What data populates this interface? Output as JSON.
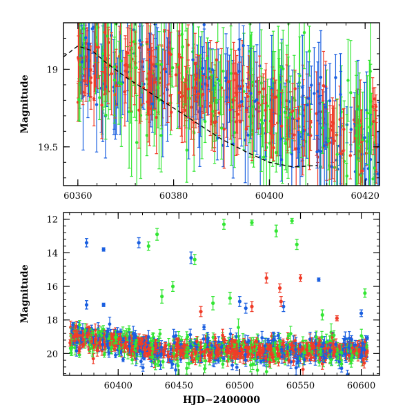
{
  "chart_data": [
    {
      "type": "scatter",
      "title": "",
      "xlabel": "",
      "ylabel": "Magnitude",
      "xlim": [
        60357,
        60423
      ],
      "ylim": [
        19.75,
        18.7
      ],
      "y_inverted": true,
      "xticks": [
        60360,
        60380,
        60400,
        60420
      ],
      "yticks": [
        19,
        19.5
      ],
      "tick_labels_x": [
        "60360",
        "60380",
        "60400",
        "60420"
      ],
      "tick_labels_y": [
        "19",
        "19.5"
      ],
      "colors": {
        "blue": "#1a5fe0",
        "green": "#33e633",
        "red": "#f03c28",
        "curve": "#000000"
      },
      "trend_curve": {
        "style": "dashed",
        "x": [
          60357,
          60360,
          60363,
          60366,
          60370,
          60375,
          60380,
          60385,
          60390,
          60395,
          60400,
          60405,
          60410
        ],
        "y": [
          18.92,
          18.85,
          18.88,
          18.96,
          19.05,
          19.15,
          19.25,
          19.35,
          19.45,
          19.53,
          19.6,
          19.63,
          19.62
        ]
      },
      "series": [
        {
          "name": "",
          "color": "blue",
          "x_range": [
            60360,
            60423
          ],
          "y_start": 18.9,
          "y_end": 19.45,
          "scatter": 0.18,
          "err": 0.25,
          "count": 160
        },
        {
          "name": "",
          "color": "green",
          "x_range": [
            60360,
            60423
          ],
          "y_start": 18.9,
          "y_end": 19.45,
          "scatter": 0.2,
          "err": 0.3,
          "count": 170
        },
        {
          "name": "",
          "color": "red",
          "x_range": [
            60360,
            60423
          ],
          "y_start": 18.95,
          "y_end": 19.42,
          "scatter": 0.12,
          "err": 0.18,
          "count": 260
        }
      ]
    },
    {
      "type": "scatter",
      "title": "",
      "xlabel": "HJD−2400000",
      "ylabel": "Magnitude",
      "xlim": [
        60355,
        60615
      ],
      "ylim": [
        21.3,
        11.6
      ],
      "y_inverted": true,
      "xticks": [
        60400,
        60450,
        60500,
        60550,
        60600
      ],
      "yticks": [
        12,
        14,
        16,
        18,
        20
      ],
      "tick_labels_x": [
        "60400",
        "60450",
        "60500",
        "60550",
        "60600"
      ],
      "tick_labels_y": [
        "12",
        "14",
        "16",
        "18",
        "20"
      ],
      "colors": {
        "blue": "#1a5fe0",
        "green": "#33e633",
        "red": "#f03c28"
      },
      "series": [
        {
          "name": "",
          "color": "blue",
          "x_range": [
            60360,
            60605
          ],
          "y_start": 18.9,
          "y_end": 19.8,
          "scatter": 0.45,
          "err": 0.3,
          "count": 320
        },
        {
          "name": "",
          "color": "green",
          "x_range": [
            60360,
            60605
          ],
          "y_start": 18.9,
          "y_end": 19.8,
          "scatter": 0.45,
          "err": 0.35,
          "count": 320
        },
        {
          "name": "",
          "color": "red",
          "x_range": [
            60360,
            60605
          ],
          "y_start": 18.9,
          "y_end": 19.8,
          "scatter": 0.3,
          "err": 0.25,
          "count": 600
        }
      ],
      "outliers": [
        {
          "color": "blue",
          "x": 60374,
          "y": 13.4,
          "err": 0.25
        },
        {
          "color": "blue",
          "x": 60388,
          "y": 13.8,
          "err": 0.1
        },
        {
          "color": "blue",
          "x": 60417,
          "y": 13.4,
          "err": 0.3
        },
        {
          "color": "blue",
          "x": 60460,
          "y": 14.3,
          "err": 0.35
        },
        {
          "color": "blue",
          "x": 60565,
          "y": 15.6,
          "err": 0.1
        },
        {
          "color": "blue",
          "x": 60374,
          "y": 17.1,
          "err": 0.25
        },
        {
          "color": "blue",
          "x": 60388,
          "y": 17.1,
          "err": 0.1
        },
        {
          "color": "blue",
          "x": 60500,
          "y": 16.9,
          "err": 0.3
        },
        {
          "color": "blue",
          "x": 60505,
          "y": 17.3,
          "err": 0.3
        },
        {
          "color": "blue",
          "x": 60536,
          "y": 17.2,
          "err": 0.3
        },
        {
          "color": "blue",
          "x": 60600,
          "y": 17.6,
          "err": 0.2
        },
        {
          "color": "green",
          "x": 60425,
          "y": 13.6,
          "err": 0.25
        },
        {
          "color": "green",
          "x": 60432,
          "y": 12.9,
          "err": 0.35
        },
        {
          "color": "green",
          "x": 60463,
          "y": 14.4,
          "err": 0.3
        },
        {
          "color": "green",
          "x": 60487,
          "y": 12.3,
          "err": 0.3
        },
        {
          "color": "green",
          "x": 60510,
          "y": 12.2,
          "err": 0.15
        },
        {
          "color": "green",
          "x": 60530,
          "y": 12.7,
          "err": 0.35
        },
        {
          "color": "green",
          "x": 60543,
          "y": 12.1,
          "err": 0.15
        },
        {
          "color": "green",
          "x": 60547,
          "y": 13.5,
          "err": 0.3
        },
        {
          "color": "green",
          "x": 60445,
          "y": 16.0,
          "err": 0.3
        },
        {
          "color": "green",
          "x": 60436,
          "y": 16.6,
          "err": 0.4
        },
        {
          "color": "green",
          "x": 60478,
          "y": 17.0,
          "err": 0.4
        },
        {
          "color": "green",
          "x": 60492,
          "y": 16.7,
          "err": 0.35
        },
        {
          "color": "green",
          "x": 60603,
          "y": 16.4,
          "err": 0.25
        },
        {
          "color": "green",
          "x": 60568,
          "y": 17.7,
          "err": 0.3
        },
        {
          "color": "red",
          "x": 60522,
          "y": 15.5,
          "err": 0.3
        },
        {
          "color": "red",
          "x": 60533,
          "y": 16.1,
          "err": 0.25
        },
        {
          "color": "red",
          "x": 60550,
          "y": 15.5,
          "err": 0.2
        },
        {
          "color": "red",
          "x": 60534,
          "y": 16.9,
          "err": 0.3
        },
        {
          "color": "red",
          "x": 60510,
          "y": 17.2,
          "err": 0.3
        },
        {
          "color": "red",
          "x": 60468,
          "y": 17.5,
          "err": 0.3
        },
        {
          "color": "red",
          "x": 60580,
          "y": 17.9,
          "err": 0.15
        }
      ]
    }
  ]
}
